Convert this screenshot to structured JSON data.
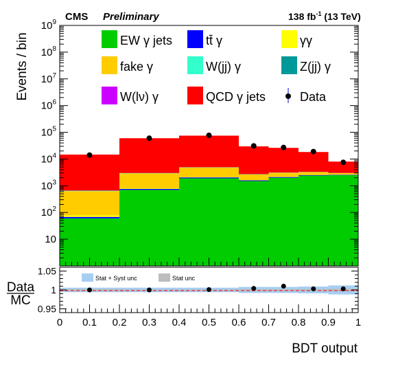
{
  "header": {
    "experiment": "CMS",
    "status": "Preliminary",
    "lumi_value": "138 fb",
    "lumi_exp": "-1",
    "lumi_rest": " (13 TeV)"
  },
  "chart_data": [
    {
      "type": "bar",
      "stacked": true,
      "ylabel": "Events / bin",
      "yscale": "log",
      "ylim": [
        1,
        1000000000.0
      ],
      "xlim": [
        0,
        1
      ],
      "y_ticks": [
        {
          "base": "10",
          "exp": "9",
          "value": 1000000000.0
        },
        {
          "base": "10",
          "exp": "8",
          "value": 100000000.0
        },
        {
          "base": "10",
          "exp": "7",
          "value": 10000000.0
        },
        {
          "base": "10",
          "exp": "6",
          "value": 1000000.0
        },
        {
          "base": "10",
          "exp": "5",
          "value": 100000.0
        },
        {
          "base": "10",
          "exp": "4",
          "value": 10000.0
        },
        {
          "base": "10",
          "exp": "3",
          "value": 1000.0
        },
        {
          "base": "10",
          "exp": "2",
          "value": 100.0
        },
        {
          "base": "10",
          "exp": "",
          "value": 10
        }
      ],
      "bins": [
        [
          0,
          0.2
        ],
        [
          0.2,
          0.4
        ],
        [
          0.4,
          0.6
        ],
        [
          0.6,
          0.7
        ],
        [
          0.7,
          0.8
        ],
        [
          0.8,
          0.9
        ],
        [
          0.9,
          1.0
        ]
      ],
      "series": [
        {
          "name": "EW γ jets",
          "color": "#00cc00",
          "values": [
            60,
            700,
            1900,
            1500,
            2000,
            2400,
            2500
          ]
        },
        {
          "name": "tt̄ γ",
          "color": "#0000ff",
          "values": [
            8,
            60,
            150,
            100,
            120,
            110,
            90
          ]
        },
        {
          "name": "γγ",
          "color": "#ffff00",
          "values": [
            10,
            40,
            50,
            40,
            40,
            30,
            30
          ]
        },
        {
          "name": "fake γ",
          "color": "#ffcc00",
          "values": [
            550,
            2100,
            2700,
            1000,
            900,
            700,
            350
          ]
        },
        {
          "name": "W(jj) γ",
          "color": "#33ffcc",
          "values": [
            15,
            50,
            60,
            40,
            40,
            30,
            20
          ]
        },
        {
          "name": "Z(jj) γ",
          "color": "#009999",
          "values": [
            15,
            40,
            60,
            30,
            30,
            30,
            20
          ]
        },
        {
          "name": "W(lν) γ",
          "color": "#cc00ff",
          "values": [
            3,
            10,
            10,
            10,
            10,
            10,
            8
          ]
        },
        {
          "name": "QCD γ jets",
          "color": "#ff0000",
          "values": [
            14000,
            57000,
            70000,
            27000,
            23000,
            15000,
            5000
          ]
        }
      ],
      "data_series": {
        "name": "Data",
        "x": [
          0.1,
          0.3,
          0.5,
          0.65,
          0.75,
          0.85,
          0.95
        ],
        "y": [
          14000,
          60000,
          77000,
          31000,
          27000,
          19000,
          7500
        ]
      }
    },
    {
      "type": "ratio",
      "ylabel_num": "Data",
      "ylabel_den": "MC",
      "ylim": [
        0.94,
        1.06
      ],
      "y_ticks": [
        "1.05",
        "1",
        "0.95"
      ],
      "x_ticks": [
        "0",
        "0.1",
        "0.2",
        "0.3",
        "0.4",
        "0.5",
        "0.6",
        "0.7",
        "0.8",
        "0.9",
        "1"
      ],
      "xlabel": "BDT output",
      "legend": {
        "syst": "Stat + Syst unc",
        "stat": "Stat unc"
      },
      "points": {
        "x": [
          0.1,
          0.3,
          0.5,
          0.65,
          0.75,
          0.85,
          0.95
        ],
        "y": [
          1.0,
          1.0,
          1.001,
          1.004,
          1.01,
          1.003,
          1.003
        ]
      },
      "syst_band": [
        0.006,
        0.006,
        0.006,
        0.008,
        0.008,
        0.009,
        0.012
      ],
      "stat_band": [
        0.002,
        0.001,
        0.001,
        0.002,
        0.002,
        0.002,
        0.003
      ]
    }
  ]
}
